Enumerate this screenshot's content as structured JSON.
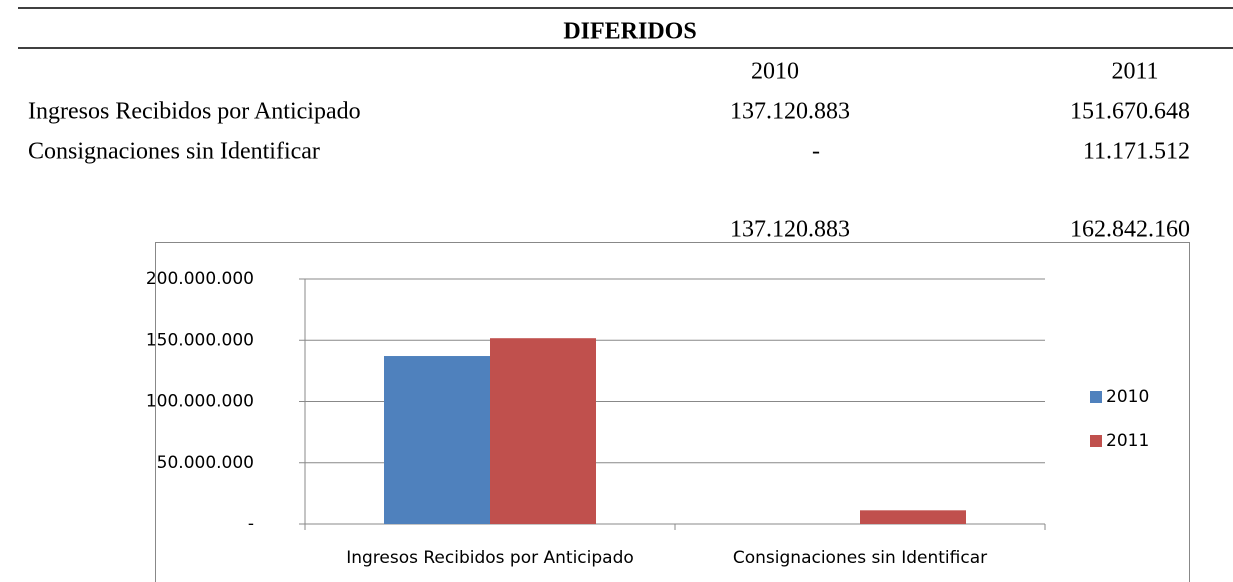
{
  "table": {
    "title": "DIFERIDOS",
    "columns": [
      "2010",
      "2011"
    ],
    "rows": [
      [
        "Ingresos Recibidos por Anticipado",
        "137.120.883",
        "151.670.648"
      ],
      [
        "Consignaciones sin Identificar",
        "-",
        "11.171.512"
      ]
    ],
    "totals": [
      "137.120.883",
      "162.842.160"
    ]
  },
  "chart_data": {
    "type": "bar",
    "categories": [
      "Ingresos Recibidos por Anticipado",
      "Consignaciones sin Identificar"
    ],
    "series": [
      {
        "name": "2010",
        "color": "#4f81bd",
        "values": [
          137120883,
          0
        ]
      },
      {
        "name": "2011",
        "color": "#c0504d",
        "values": [
          151670648,
          11171512
        ]
      }
    ],
    "ylim": [
      0,
      200000000
    ],
    "yticks": [
      {
        "value": 0,
        "label": "-"
      },
      {
        "value": 50000000,
        "label": "50.000.000"
      },
      {
        "value": 100000000,
        "label": "100.000.000"
      },
      {
        "value": 150000000,
        "label": "150.000.000"
      },
      {
        "value": 200000000,
        "label": "200.000.000"
      }
    ],
    "grid": true,
    "legend": "right"
  }
}
